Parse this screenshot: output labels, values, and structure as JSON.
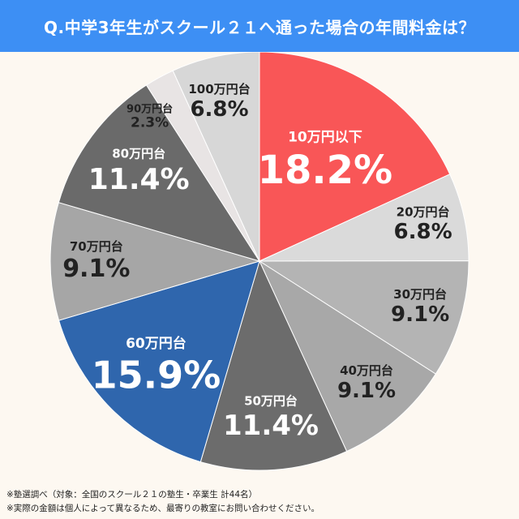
{
  "title": "Q.中学3年生がスクール２１へ通った場合の年間料金は？",
  "chart_data": {
    "type": "pie",
    "title": "Q.中学3年生がスクール２１へ通った場合の年間料金は？",
    "start": "12 o'clock",
    "direction": "clockwise",
    "slices": [
      {
        "label": "10万円以下",
        "value": 18.2,
        "value_label": "18.2%",
        "color": "#f95657",
        "text_color": "#ffffff"
      },
      {
        "label": "20万円台",
        "value": 6.8,
        "value_label": "6.8%",
        "color": "#dadada",
        "text_color": "#222222"
      },
      {
        "label": "30万円台",
        "value": 9.1,
        "value_label": "9.1%",
        "color": "#b4b4b4",
        "text_color": "#222222"
      },
      {
        "label": "40万円台",
        "value": 9.1,
        "value_label": "9.1%",
        "color": "#a8a8a8",
        "text_color": "#222222"
      },
      {
        "label": "50万円台",
        "value": 11.4,
        "value_label": "11.4%",
        "color": "#6c6c6c",
        "text_color": "#ffffff"
      },
      {
        "label": "60万円台",
        "value": 15.9,
        "value_label": "15.9%",
        "color": "#2f66ad",
        "text_color": "#ffffff"
      },
      {
        "label": "70万円台",
        "value": 9.1,
        "value_label": "9.1%",
        "color": "#a6a6a6",
        "text_color": "#222222"
      },
      {
        "label": "80万円台",
        "value": 11.4,
        "value_label": "11.4%",
        "color": "#6a6a6a",
        "text_color": "#ffffff"
      },
      {
        "label": "90万円台",
        "value": 2.3,
        "value_label": "2.3%",
        "color": "#e8e4e4",
        "text_color": "#222222"
      },
      {
        "label": "100万円台",
        "value": 6.8,
        "value_label": "6.8%",
        "color": "#d7d7d7",
        "text_color": "#222222"
      }
    ]
  },
  "notes": [
    "※塾選調べ（対象：全国のスクール２１の塾生・卒業生 計44名）",
    "※実際の金額は個人によって異なるため、最寄りの教室にお問い合わせください。"
  ],
  "colors": {
    "title_bar": "#3d8ff4",
    "background": "#fdf8f1"
  }
}
